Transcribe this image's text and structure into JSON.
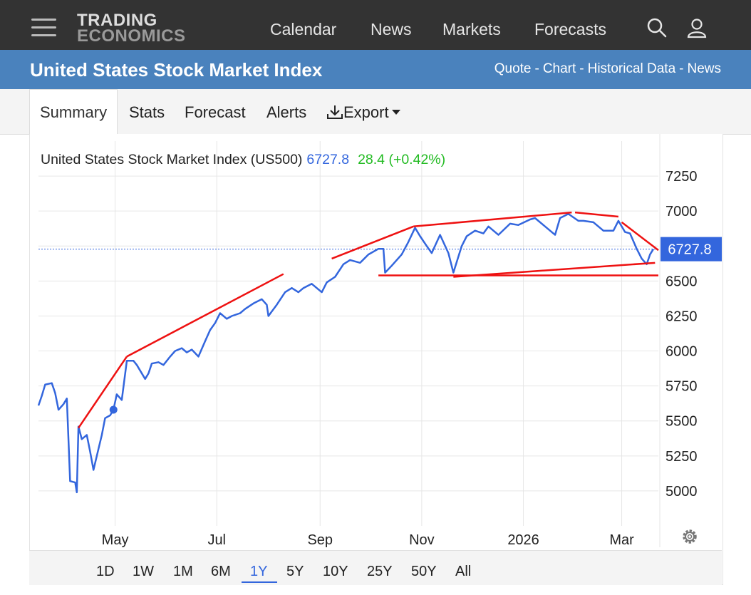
{
  "header": {
    "logo_line1": "TRADING",
    "logo_line2": "ECONOMICS",
    "nav": [
      "Calendar",
      "News",
      "Markets",
      "Forecasts"
    ],
    "icons": [
      "menu-icon",
      "search-icon",
      "user-icon"
    ]
  },
  "titlebar": {
    "title": "United States Stock Market Index",
    "links": [
      "Quote",
      "Chart",
      "Historical Data",
      "News"
    ],
    "separator": "-"
  },
  "tabs": {
    "summary": "Summary",
    "stats": "Stats",
    "forecast": "Forecast",
    "alerts": "Alerts",
    "export": "Export",
    "active": "Summary"
  },
  "legend": {
    "name": "United States Stock Market Index (US500)",
    "last": "6727.8",
    "change": "28.4 (+0.42%)"
  },
  "ranges": {
    "items": [
      "1D",
      "1W",
      "1M",
      "6M",
      "1Y",
      "5Y",
      "10Y",
      "25Y",
      "50Y",
      "All"
    ],
    "active": "1Y"
  },
  "colors": {
    "line": "#3366dd",
    "trend": "#ee1111",
    "up": "#22bb22",
    "titlebar": "#4a82bd",
    "topbar": "#333333"
  },
  "chart_data": {
    "type": "line",
    "x_tick_labels": [
      "May",
      "Jul",
      "Sep",
      "Nov",
      "2026",
      "Mar"
    ],
    "x_tick_dates": [
      "2025-05-01",
      "2025-07-01",
      "2025-09-01",
      "2025-11-01",
      "2026-01-01",
      "2026-03-01"
    ],
    "y_ticks": [
      5000,
      5250,
      5500,
      5750,
      6000,
      6250,
      6500,
      6750,
      7000,
      7250
    ],
    "y_tick_labels": [
      "5000",
      "5250",
      "5500",
      "5750",
      "6000",
      "6250",
      "6500",
      "",
      "7000",
      "7250"
    ],
    "ylim": [
      4750,
      7500
    ],
    "xlim": [
      "2025-03-16",
      "2026-03-23"
    ],
    "last_value": 6727.8,
    "last_value_label": "6727.8",
    "grid": true,
    "series": [
      {
        "x": [
          "2025-03-16",
          "2025-03-18",
          "2025-03-20",
          "2025-03-24",
          "2025-03-26",
          "2025-03-28",
          "2025-03-31",
          "2025-04-02",
          "2025-04-04",
          "2025-04-07",
          "2025-04-08",
          "2025-04-09",
          "2025-04-11",
          "2025-04-14",
          "2025-04-16",
          "2025-04-18",
          "2025-04-21",
          "2025-04-23",
          "2025-04-25",
          "2025-04-28",
          "2025-04-30",
          "2025-05-02",
          "2025-05-05",
          "2025-05-08",
          "2025-05-12",
          "2025-05-14",
          "2025-05-19",
          "2025-05-21",
          "2025-05-23",
          "2025-05-27",
          "2025-05-30",
          "2025-06-03",
          "2025-06-06",
          "2025-06-10",
          "2025-06-13",
          "2025-06-16",
          "2025-06-20",
          "2025-06-24",
          "2025-06-27",
          "2025-06-30",
          "2025-07-03",
          "2025-07-07",
          "2025-07-10",
          "2025-07-15",
          "2025-07-18",
          "2025-07-23",
          "2025-07-28",
          "2025-07-31",
          "2025-08-01",
          "2025-08-06",
          "2025-08-11",
          "2025-08-15",
          "2025-08-19",
          "2025-08-22",
          "2025-08-27",
          "2025-09-02",
          "2025-09-05",
          "2025-09-10",
          "2025-09-15",
          "2025-09-19",
          "2025-09-25",
          "2025-09-30",
          "2025-10-06",
          "2025-10-09",
          "2025-10-10",
          "2025-10-14",
          "2025-10-20",
          "2025-10-24",
          "2025-10-28",
          "2025-10-31",
          "2025-11-04",
          "2025-11-07",
          "2025-11-12",
          "2025-11-17",
          "2025-11-20",
          "2025-11-25",
          "2025-11-28",
          "2025-12-03",
          "2025-12-08",
          "2025-12-11",
          "2025-12-17",
          "2025-12-24",
          "2025-12-29",
          "2026-01-05",
          "2026-01-08",
          "2026-01-13",
          "2026-01-20",
          "2026-01-23",
          "2026-01-28",
          "2026-02-03",
          "2026-02-06",
          "2026-02-12",
          "2026-02-18",
          "2026-02-24",
          "2026-02-27",
          "2026-03-03",
          "2026-03-06",
          "2026-03-10",
          "2026-03-13",
          "2026-03-16",
          "2026-03-18",
          "2026-03-20"
        ],
        "values": [
          5610,
          5680,
          5760,
          5770,
          5700,
          5580,
          5620,
          5660,
          5070,
          5060,
          4990,
          5460,
          5370,
          5400,
          5280,
          5150,
          5300,
          5400,
          5520,
          5540,
          5580,
          5690,
          5650,
          5930,
          5930,
          5900,
          5800,
          5840,
          5910,
          5920,
          5900,
          5960,
          6000,
          6020,
          5990,
          6010,
          5960,
          6070,
          6150,
          6200,
          6270,
          6230,
          6250,
          6270,
          6300,
          6340,
          6370,
          6330,
          6250,
          6330,
          6420,
          6450,
          6420,
          6450,
          6480,
          6420,
          6490,
          6530,
          6620,
          6650,
          6630,
          6690,
          6730,
          6730,
          6560,
          6610,
          6690,
          6780,
          6880,
          6820,
          6750,
          6700,
          6830,
          6700,
          6560,
          6750,
          6820,
          6860,
          6840,
          6890,
          6830,
          6910,
          6900,
          6940,
          6950,
          6900,
          6830,
          6950,
          6980,
          6930,
          6930,
          6920,
          6860,
          6860,
          6930,
          6850,
          6840,
          6730,
          6660,
          6620,
          6690,
          6727.8
        ]
      }
    ],
    "trendlines": [
      {
        "from": [
          "2025-04-09",
          5450
        ],
        "to": [
          "2025-05-08",
          5960
        ]
      },
      {
        "from": [
          "2025-05-08",
          5960
        ],
        "to": [
          "2025-08-10",
          6550
        ]
      },
      {
        "from": [
          "2025-09-08",
          6660
        ],
        "to": [
          "2025-10-27",
          6890
        ]
      },
      {
        "from": [
          "2025-10-27",
          6890
        ],
        "to": [
          "2026-01-30",
          6990
        ]
      },
      {
        "from": [
          "2026-02-01",
          6990
        ],
        "to": [
          "2026-02-27",
          6960
        ]
      },
      {
        "from": [
          "2026-03-01",
          6920
        ],
        "to": [
          "2026-03-23",
          6720
        ]
      },
      {
        "from": [
          "2025-10-06",
          6540
        ],
        "to": [
          "2026-03-23",
          6540
        ]
      },
      {
        "from": [
          "2025-11-20",
          6530
        ],
        "to": [
          "2026-03-21",
          6630
        ]
      }
    ]
  }
}
